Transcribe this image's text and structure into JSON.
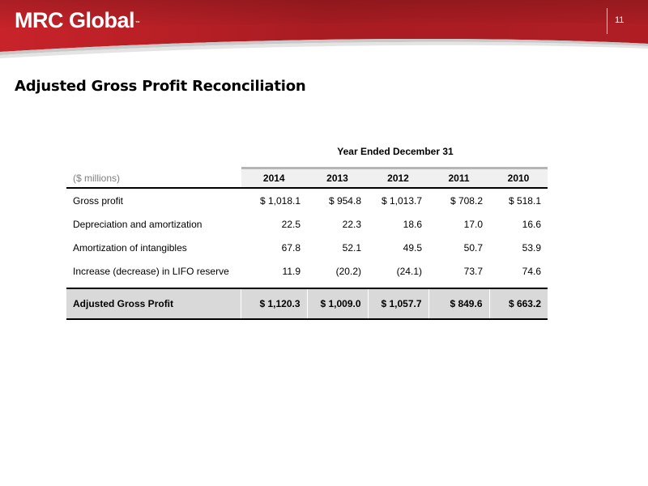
{
  "header": {
    "logo_text": "MRC Global",
    "logo_mark": "™",
    "page_number": "11",
    "brand_color": "#b41f24"
  },
  "title": "Adjusted Gross Profit Reconciliation",
  "table": {
    "period_heading": "Year Ended December 31",
    "units": "($ millions)",
    "years": [
      "2014",
      "2013",
      "2012",
      "2011",
      "2010"
    ],
    "rows": [
      {
        "label": "Gross profit",
        "values": [
          "$ 1,018.1",
          "$ 954.8",
          "$ 1,013.7",
          "$ 708.2",
          "$ 518.1"
        ]
      },
      {
        "label": "Depreciation and amortization",
        "values": [
          "22.5",
          "22.3",
          "18.6",
          "17.0",
          "16.6"
        ]
      },
      {
        "label": "Amortization of intangibles",
        "values": [
          "67.8",
          "52.1",
          "49.5",
          "50.7",
          "53.9"
        ]
      },
      {
        "label": "Increase (decrease) in LIFO reserve",
        "values": [
          "11.9",
          "(20.2)",
          "(24.1)",
          "73.7",
          "74.6"
        ]
      }
    ],
    "total": {
      "label": "Adjusted Gross Profit",
      "values": [
        "$ 1,120.3",
        "$ 1,009.0",
        "$ 1,057.7",
        "$ 849.6",
        "$ 663.2"
      ]
    }
  }
}
